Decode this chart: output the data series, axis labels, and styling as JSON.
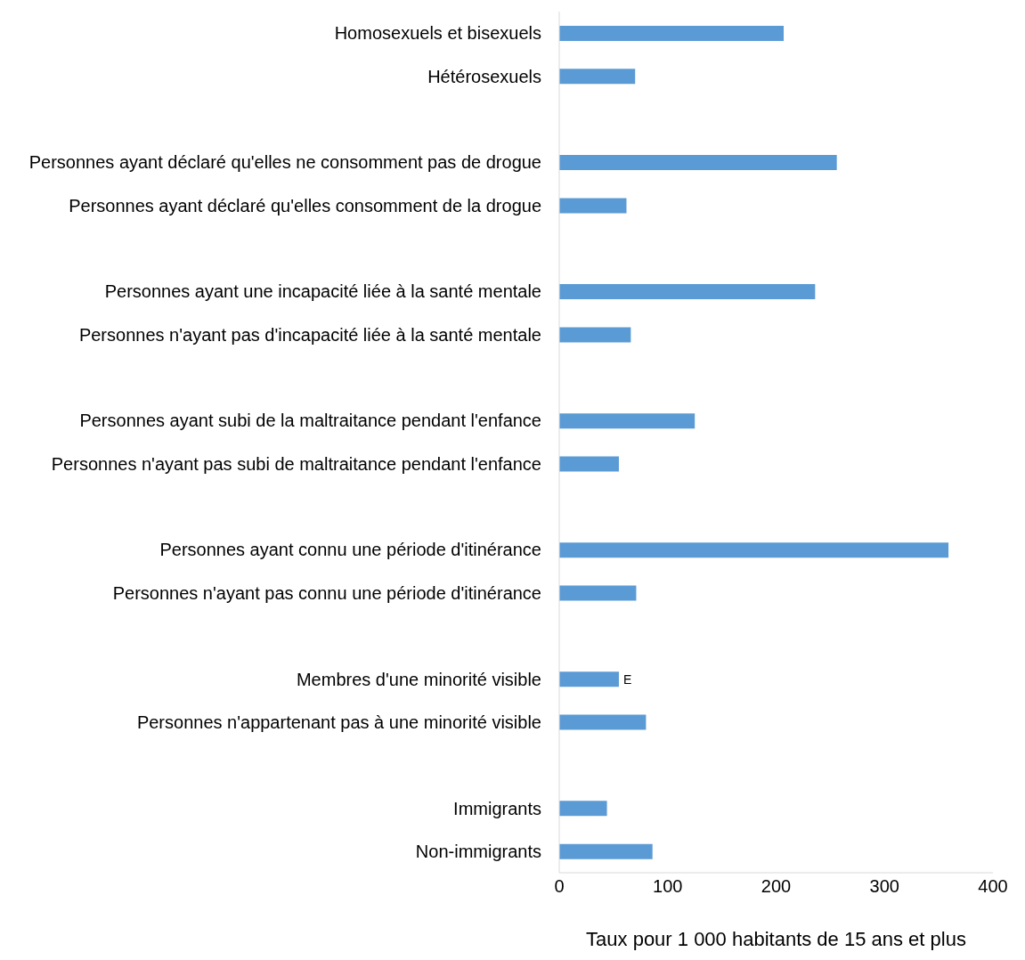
{
  "chart_data": {
    "type": "bar",
    "orientation": "horizontal",
    "xlabel": "Taux pour 1 000 habitants de 15 ans et plus",
    "categories": [
      "Homosexuels et bisexuels",
      "Hétérosexuels",
      null,
      "Personnes ayant déclaré qu'elles ne consomment pas de drogue",
      "Personnes ayant déclaré qu'elles consomment de la drogue",
      null,
      "Personnes ayant une incapacité liée à la santé mentale",
      "Personnes n'ayant pas d'incapacité liée à la santé mentale",
      null,
      "Personnes ayant subi de la maltraitance pendant l'enfance",
      "Personnes n'ayant pas subi de maltraitance pendant l'enfance",
      null,
      "Personnes ayant connu une période d'itinérance",
      "Personnes n'ayant pas connu une période d'itinérance",
      null,
      "Membres d'une minorité visible",
      "Personnes n'appartenant pas à une minorité visible",
      null,
      "Immigrants",
      "Non-immigrants"
    ],
    "values": [
      207,
      70,
      null,
      256,
      62,
      null,
      236,
      66,
      null,
      125,
      55,
      null,
      359,
      71,
      null,
      55,
      80,
      null,
      44,
      86
    ],
    "value_labels": [
      null,
      null,
      null,
      null,
      null,
      null,
      null,
      null,
      null,
      null,
      null,
      null,
      null,
      null,
      null,
      "E",
      null,
      null,
      null,
      null
    ],
    "color": "#5b9bd5",
    "xlim": [
      0,
      400
    ],
    "xticks": [
      0,
      100,
      200,
      300,
      400
    ],
    "grid": false
  }
}
